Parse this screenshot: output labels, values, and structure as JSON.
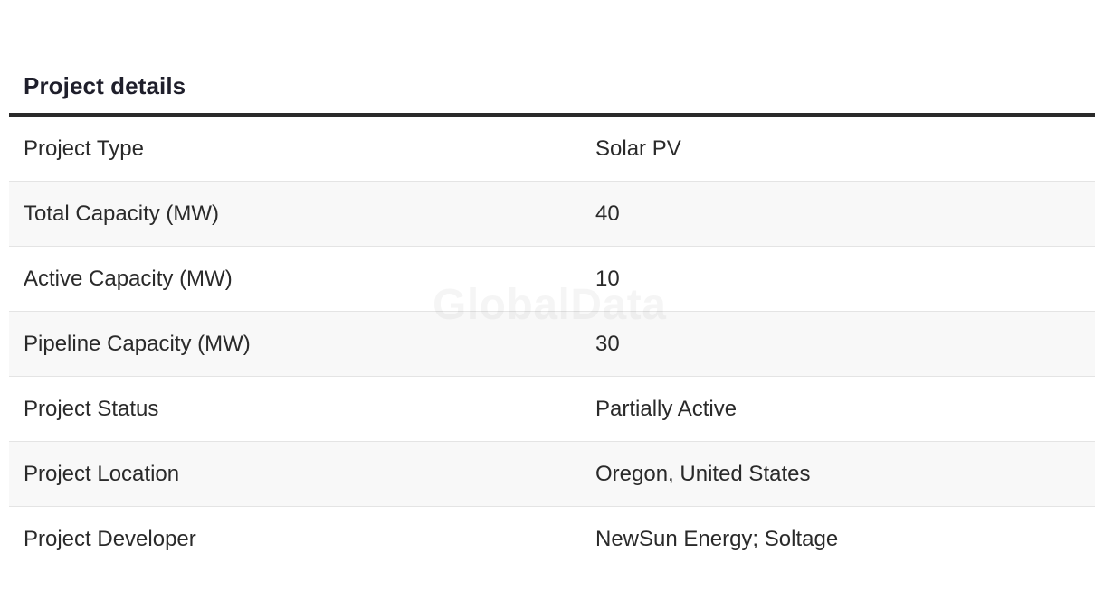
{
  "section": {
    "title": "Project details"
  },
  "watermark": "GlobalData",
  "details": [
    {
      "label": "Project Type",
      "value": "Solar PV"
    },
    {
      "label": "Total Capacity (MW)",
      "value": "40"
    },
    {
      "label": "Active Capacity (MW)",
      "value": "10"
    },
    {
      "label": "Pipeline Capacity (MW)",
      "value": "30"
    },
    {
      "label": "Project Status",
      "value": "Partially Active"
    },
    {
      "label": "Project Location",
      "value": "Oregon, United States"
    },
    {
      "label": "Project Developer",
      "value": "NewSun Energy; Soltage"
    }
  ],
  "colors": {
    "heading": "#1f1f2b",
    "text": "#2a2a2a",
    "rule": "#2a2a2a",
    "stripe": "#f8f8f8",
    "divider": "#e4e4e4"
  }
}
